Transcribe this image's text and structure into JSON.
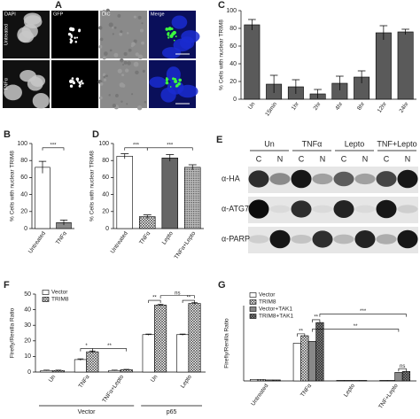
{
  "microscopy": {
    "panel_label": "A",
    "columns": [
      "DAPI",
      "GFP",
      "DIC",
      "Merge"
    ],
    "rows": [
      "Untreated",
      "TNFα"
    ]
  },
  "blot": {
    "panel_label": "E",
    "groups": [
      "Un",
      "TNFα",
      "Lepto",
      "TNF+Lepto"
    ],
    "lanes": [
      "C",
      "N",
      "C",
      "N",
      "C",
      "N",
      "C",
      "N"
    ],
    "rows": [
      "α-HA",
      "α-ATG7",
      "α-PARP"
    ]
  },
  "chart_data": [
    {
      "type": "bar",
      "panel_label": "C",
      "ylabel": "% Cells with nuclear TRIM8",
      "categories": [
        "Un",
        "15min",
        "1hr",
        "2hr",
        "4hr",
        "8hr",
        "12hr",
        "24hr"
      ],
      "values": [
        84,
        17,
        14,
        6,
        18,
        25,
        75,
        76
      ],
      "errors": [
        6,
        10,
        8,
        5,
        8,
        7,
        8,
        3
      ],
      "color": "#5a5a5a",
      "ylim": [
        0,
        100
      ],
      "yticks": [
        0,
        20,
        40,
        60,
        80,
        100
      ]
    },
    {
      "type": "bar",
      "panel_label": "B",
      "ylabel": "% Cells with nuclear TRIM8",
      "categories": [
        "Untreated",
        "TNFα"
      ],
      "values": [
        72,
        7
      ],
      "errors": [
        7,
        3
      ],
      "fills": [
        "white",
        "gray"
      ],
      "ylim": [
        0,
        100
      ],
      "yticks": [
        0,
        20,
        40,
        60,
        80,
        100
      ],
      "annotations": [
        "***"
      ]
    },
    {
      "type": "bar",
      "panel_label": "D",
      "ylabel": "% Cells with nuclear TRIM8",
      "categories": [
        "Untreated",
        "TNFα",
        "Lepto",
        "TNFα+Lepto"
      ],
      "values": [
        85,
        14,
        83,
        72
      ],
      "errors": [
        3,
        2,
        4,
        3
      ],
      "fills": [
        "white",
        "crosshatch",
        "darkgray",
        "dots"
      ],
      "ylim": [
        0,
        100
      ],
      "yticks": [
        0,
        20,
        40,
        60,
        80,
        100
      ],
      "annotations": [
        "***",
        "***"
      ]
    },
    {
      "type": "bar",
      "panel_label": "F",
      "ylabel": "Firefly/Renilla Ratio",
      "categories": [
        "Un",
        "TNFα",
        "TNFα+Lepto",
        "Un",
        "Lepto"
      ],
      "groups": [
        "Vector",
        "p65"
      ],
      "series": [
        {
          "name": "Vector",
          "fill": "white",
          "values": [
            1,
            8,
            1,
            24,
            24
          ],
          "errors": [
            0.2,
            0.5,
            0.2,
            0.4,
            0.4
          ]
        },
        {
          "name": "TRIM8",
          "fill": "crosshatch",
          "values": [
            1,
            13,
            1.5,
            43,
            44
          ],
          "errors": [
            0.2,
            0.5,
            0.2,
            0.5,
            0.5
          ]
        }
      ],
      "ylim": [
        0,
        50
      ],
      "yticks": [
        0,
        10,
        20,
        30,
        40,
        50
      ],
      "annotations": [
        "*",
        "**",
        "**",
        "**",
        "ns"
      ]
    },
    {
      "type": "bar",
      "panel_label": "G",
      "ylabel": "Firefly/Renilla Ratio",
      "categories": [
        "Untreated",
        "TNFα",
        "Lepto",
        "TNF+Lepto"
      ],
      "series": [
        {
          "name": "Vector",
          "fill": "white",
          "values": [
            1.5,
            40,
            0.5,
            0.5
          ]
        },
        {
          "name": "TRIM8",
          "fill": "crosshatch",
          "values": [
            1.5,
            48,
            0.5,
            0.5
          ]
        },
        {
          "name": "Vector+TAK1",
          "fill": "gray",
          "values": [
            1,
            42,
            0.5,
            9
          ]
        },
        {
          "name": "TRIM8+TAK1",
          "fill": "grayhatch",
          "values": [
            1,
            62,
            0.5,
            10
          ]
        }
      ],
      "ylim": [
        0,
        80
      ],
      "annotations": [
        "**",
        "**",
        "***",
        "**",
        "ns"
      ]
    }
  ]
}
